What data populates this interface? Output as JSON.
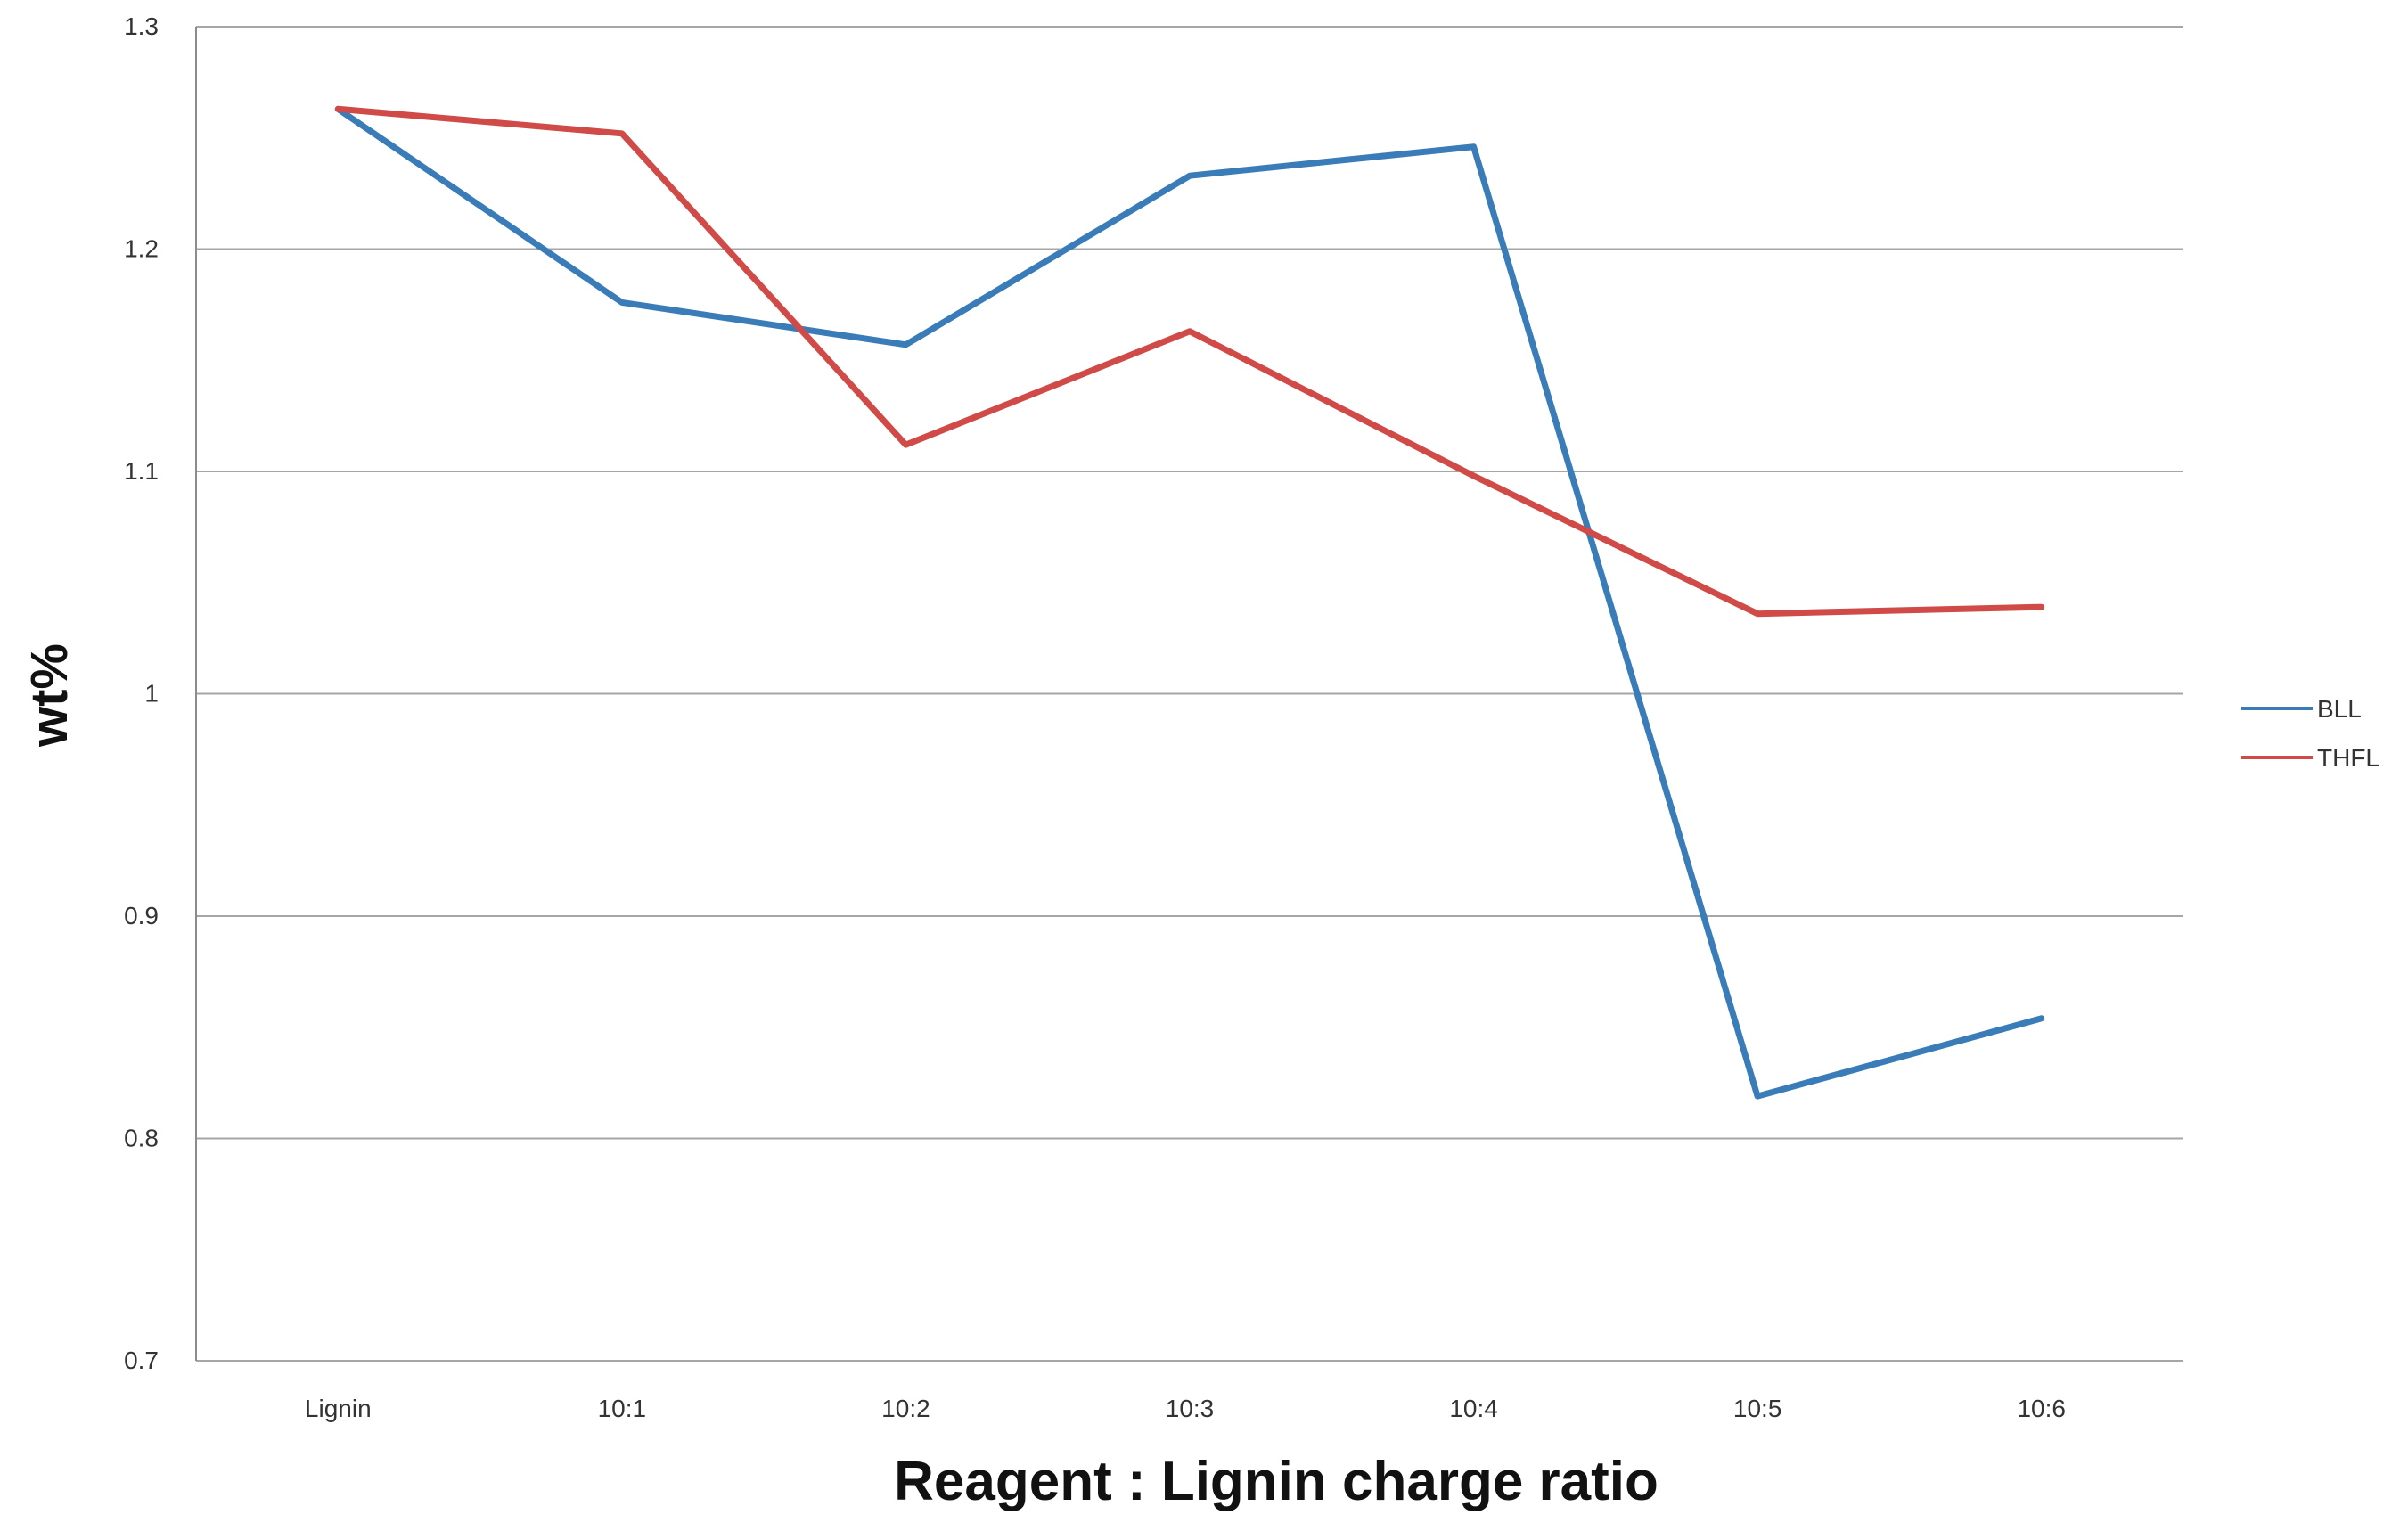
{
  "chart_data": {
    "type": "line",
    "title": "",
    "xlabel": "Reagent : Lignin charge ratio",
    "ylabel": "wt%",
    "categories": [
      "Lignin",
      "10:1",
      "10:2",
      "10:3",
      "10:4",
      "10:5",
      "10:6"
    ],
    "series": [
      {
        "name": "BLL",
        "color": "#3a7cb8",
        "values": [
          1.263,
          1.176,
          1.157,
          1.233,
          1.246,
          0.819,
          0.854
        ]
      },
      {
        "name": "THFL",
        "color": "#d04a47",
        "values": [
          1.263,
          1.252,
          1.112,
          1.163,
          1.098,
          1.036,
          1.039
        ]
      }
    ],
    "ylim": [
      0.7,
      1.3
    ],
    "yticks": [
      0.7,
      0.8,
      0.9,
      1,
      1.1,
      1.2,
      1.3
    ],
    "ytick_labels": [
      "0.7",
      "0.8",
      "0.9",
      "1",
      "1.1",
      "1.2",
      "1.3"
    ],
    "grid": true,
    "legend_position": "right"
  }
}
